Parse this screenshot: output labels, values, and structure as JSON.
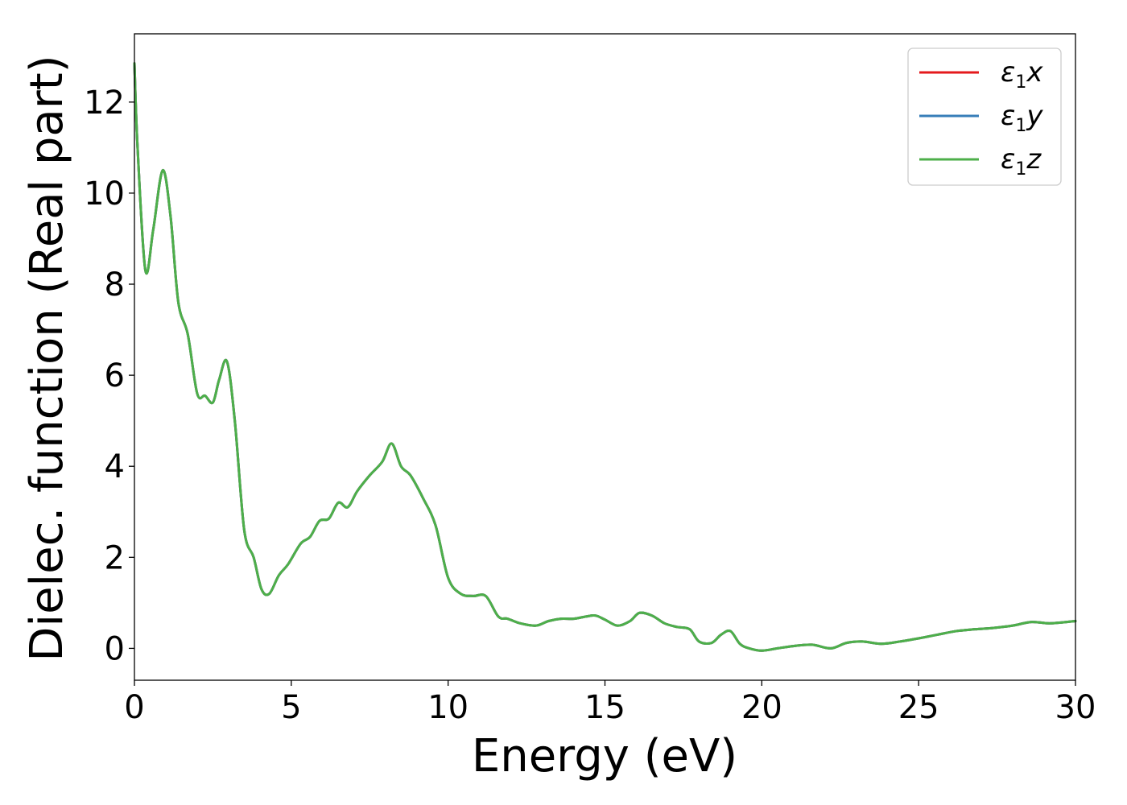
{
  "chart_data": {
    "type": "line",
    "title": "",
    "xlabel": "Energy (eV)",
    "ylabel": "Dielec. function (Real part)",
    "xlim": [
      0,
      30
    ],
    "ylim": [
      -0.7,
      13.5
    ],
    "xticks": [
      0,
      5,
      10,
      15,
      20,
      25,
      30
    ],
    "yticks": [
      0,
      2,
      4,
      6,
      8,
      10,
      12
    ],
    "grid": false,
    "legend_position": "top-right",
    "series": [
      {
        "name": "ε1x",
        "legend_base": "ε",
        "legend_sub": "1",
        "legend_suffix": "x",
        "color": "#e41a1c",
        "x": [
          0,
          0.1,
          0.35,
          0.6,
          0.9,
          1.15,
          1.4,
          1.7,
          2.0,
          2.25,
          2.5,
          2.7,
          2.95,
          3.2,
          3.5,
          3.8,
          4.05,
          4.3,
          4.6,
          4.9,
          5.3,
          5.6,
          5.9,
          6.2,
          6.5,
          6.8,
          7.1,
          7.5,
          7.9,
          8.2,
          8.5,
          8.8,
          9.2,
          9.6,
          10.0,
          10.4,
          10.8,
          11.2,
          11.6,
          11.9,
          12.3,
          12.8,
          13.2,
          13.6,
          14.0,
          14.4,
          14.7,
          15.0,
          15.4,
          15.8,
          16.1,
          16.5,
          16.9,
          17.3,
          17.7,
          18.0,
          18.4,
          18.7,
          19.0,
          19.3,
          19.6,
          20.0,
          20.5,
          21.0,
          21.6,
          22.2,
          22.7,
          23.2,
          23.8,
          24.4,
          25.0,
          25.6,
          26.2,
          26.8,
          27.4,
          28.0,
          28.6,
          29.2,
          30.0
        ],
        "values": [
          12.85,
          11.0,
          8.3,
          9.2,
          10.5,
          9.5,
          7.6,
          6.9,
          5.6,
          5.55,
          5.4,
          5.9,
          6.3,
          5.0,
          2.6,
          2.0,
          1.3,
          1.2,
          1.6,
          1.85,
          2.3,
          2.45,
          2.8,
          2.85,
          3.2,
          3.1,
          3.45,
          3.8,
          4.1,
          4.5,
          4.0,
          3.8,
          3.3,
          2.7,
          1.55,
          1.2,
          1.15,
          1.15,
          0.7,
          0.65,
          0.55,
          0.5,
          0.6,
          0.65,
          0.65,
          0.7,
          0.72,
          0.63,
          0.5,
          0.6,
          0.78,
          0.72,
          0.55,
          0.47,
          0.42,
          0.15,
          0.12,
          0.3,
          0.38,
          0.1,
          0.0,
          -0.05,
          0.0,
          0.05,
          0.08,
          0.0,
          0.12,
          0.15,
          0.1,
          0.15,
          0.22,
          0.3,
          0.38,
          0.42,
          0.45,
          0.5,
          0.58,
          0.55,
          0.6
        ]
      },
      {
        "name": "ε1y",
        "legend_base": "ε",
        "legend_sub": "1",
        "legend_suffix": "y",
        "color": "#377eb8",
        "x": [
          0,
          0.1,
          0.35,
          0.6,
          0.9,
          1.15,
          1.4,
          1.7,
          2.0,
          2.25,
          2.5,
          2.7,
          2.95,
          3.2,
          3.5,
          3.8,
          4.05,
          4.3,
          4.6,
          4.9,
          5.3,
          5.6,
          5.9,
          6.2,
          6.5,
          6.8,
          7.1,
          7.5,
          7.9,
          8.2,
          8.5,
          8.8,
          9.2,
          9.6,
          10.0,
          10.4,
          10.8,
          11.2,
          11.6,
          11.9,
          12.3,
          12.8,
          13.2,
          13.6,
          14.0,
          14.4,
          14.7,
          15.0,
          15.4,
          15.8,
          16.1,
          16.5,
          16.9,
          17.3,
          17.7,
          18.0,
          18.4,
          18.7,
          19.0,
          19.3,
          19.6,
          20.0,
          20.5,
          21.0,
          21.6,
          22.2,
          22.7,
          23.2,
          23.8,
          24.4,
          25.0,
          25.6,
          26.2,
          26.8,
          27.4,
          28.0,
          28.6,
          29.2,
          30.0
        ],
        "values": [
          12.85,
          11.0,
          8.3,
          9.2,
          10.5,
          9.5,
          7.6,
          6.9,
          5.6,
          5.55,
          5.4,
          5.9,
          6.3,
          5.0,
          2.6,
          2.0,
          1.3,
          1.2,
          1.6,
          1.85,
          2.3,
          2.45,
          2.8,
          2.85,
          3.2,
          3.1,
          3.45,
          3.8,
          4.1,
          4.5,
          4.0,
          3.8,
          3.3,
          2.7,
          1.55,
          1.2,
          1.15,
          1.15,
          0.7,
          0.65,
          0.55,
          0.5,
          0.6,
          0.65,
          0.65,
          0.7,
          0.72,
          0.63,
          0.5,
          0.6,
          0.78,
          0.72,
          0.55,
          0.47,
          0.42,
          0.15,
          0.12,
          0.3,
          0.38,
          0.1,
          0.0,
          -0.05,
          0.0,
          0.05,
          0.08,
          0.0,
          0.12,
          0.15,
          0.1,
          0.15,
          0.22,
          0.3,
          0.38,
          0.42,
          0.45,
          0.5,
          0.58,
          0.55,
          0.6
        ]
      },
      {
        "name": "ε1z",
        "legend_base": "ε",
        "legend_sub": "1",
        "legend_suffix": "z",
        "color": "#4daf4a",
        "x": [
          0,
          0.1,
          0.35,
          0.6,
          0.9,
          1.15,
          1.4,
          1.7,
          2.0,
          2.25,
          2.5,
          2.7,
          2.95,
          3.2,
          3.5,
          3.8,
          4.05,
          4.3,
          4.6,
          4.9,
          5.3,
          5.6,
          5.9,
          6.2,
          6.5,
          6.8,
          7.1,
          7.5,
          7.9,
          8.2,
          8.5,
          8.8,
          9.2,
          9.6,
          10.0,
          10.4,
          10.8,
          11.2,
          11.6,
          11.9,
          12.3,
          12.8,
          13.2,
          13.6,
          14.0,
          14.4,
          14.7,
          15.0,
          15.4,
          15.8,
          16.1,
          16.5,
          16.9,
          17.3,
          17.7,
          18.0,
          18.4,
          18.7,
          19.0,
          19.3,
          19.6,
          20.0,
          20.5,
          21.0,
          21.6,
          22.2,
          22.7,
          23.2,
          23.8,
          24.4,
          25.0,
          25.6,
          26.2,
          26.8,
          27.4,
          28.0,
          28.6,
          29.2,
          30.0
        ],
        "values": [
          12.85,
          11.0,
          8.3,
          9.2,
          10.5,
          9.5,
          7.6,
          6.9,
          5.6,
          5.55,
          5.4,
          5.9,
          6.3,
          5.0,
          2.6,
          2.0,
          1.3,
          1.2,
          1.6,
          1.85,
          2.3,
          2.45,
          2.8,
          2.85,
          3.2,
          3.1,
          3.45,
          3.8,
          4.1,
          4.5,
          4.0,
          3.8,
          3.3,
          2.7,
          1.55,
          1.2,
          1.15,
          1.15,
          0.7,
          0.65,
          0.55,
          0.5,
          0.6,
          0.65,
          0.65,
          0.7,
          0.72,
          0.63,
          0.5,
          0.6,
          0.78,
          0.72,
          0.55,
          0.47,
          0.42,
          0.15,
          0.12,
          0.3,
          0.38,
          0.1,
          0.0,
          -0.05,
          0.0,
          0.05,
          0.08,
          0.0,
          0.12,
          0.15,
          0.1,
          0.15,
          0.22,
          0.3,
          0.38,
          0.42,
          0.45,
          0.5,
          0.58,
          0.55,
          0.6
        ]
      }
    ]
  }
}
